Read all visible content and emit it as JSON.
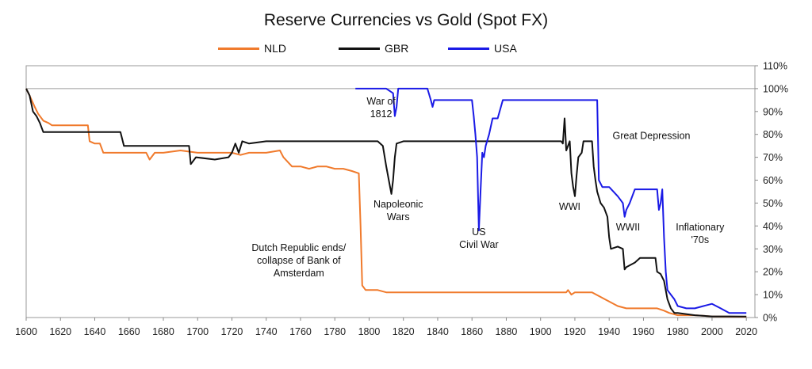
{
  "chart_data": {
    "type": "line",
    "title": "Reserve Currencies vs Gold (Spot FX)",
    "xlabel": "",
    "ylabel": "",
    "xlim": [
      1600,
      2025
    ],
    "ylim": [
      0,
      1.1
    ],
    "x_ticks": [
      1600,
      1620,
      1640,
      1660,
      1680,
      1700,
      1720,
      1740,
      1760,
      1780,
      1800,
      1820,
      1840,
      1860,
      1880,
      1900,
      1920,
      1940,
      1960,
      1980,
      2000,
      2020
    ],
    "y_ticks": [
      0,
      0.1,
      0.2,
      0.3,
      0.4,
      0.5,
      0.6,
      0.7,
      0.8,
      0.9,
      1.0,
      1.1
    ],
    "y_tick_labels": [
      "0%",
      "10%",
      "20%",
      "30%",
      "40%",
      "50%",
      "60%",
      "70%",
      "80%",
      "90%",
      "100%",
      "110%"
    ],
    "y_axis_side": "right",
    "legend_position": "top",
    "series": [
      {
        "name": "NLD",
        "color": "#f07a2c",
        "points": [
          [
            1600,
            1.0
          ],
          [
            1602,
            0.97
          ],
          [
            1605,
            0.92
          ],
          [
            1607,
            0.89
          ],
          [
            1610,
            0.86
          ],
          [
            1613,
            0.85
          ],
          [
            1615,
            0.84
          ],
          [
            1620,
            0.84
          ],
          [
            1625,
            0.84
          ],
          [
            1636,
            0.84
          ],
          [
            1637,
            0.77
          ],
          [
            1640,
            0.76
          ],
          [
            1643,
            0.76
          ],
          [
            1645,
            0.72
          ],
          [
            1650,
            0.72
          ],
          [
            1660,
            0.72
          ],
          [
            1670,
            0.72
          ],
          [
            1672,
            0.69
          ],
          [
            1675,
            0.72
          ],
          [
            1680,
            0.72
          ],
          [
            1690,
            0.73
          ],
          [
            1700,
            0.72
          ],
          [
            1710,
            0.72
          ],
          [
            1720,
            0.72
          ],
          [
            1725,
            0.71
          ],
          [
            1730,
            0.72
          ],
          [
            1740,
            0.72
          ],
          [
            1748,
            0.73
          ],
          [
            1750,
            0.7
          ],
          [
            1755,
            0.66
          ],
          [
            1760,
            0.66
          ],
          [
            1765,
            0.65
          ],
          [
            1770,
            0.66
          ],
          [
            1775,
            0.66
          ],
          [
            1780,
            0.65
          ],
          [
            1785,
            0.65
          ],
          [
            1790,
            0.64
          ],
          [
            1794,
            0.63
          ],
          [
            1795,
            0.4
          ],
          [
            1796,
            0.14
          ],
          [
            1798,
            0.12
          ],
          [
            1805,
            0.12
          ],
          [
            1810,
            0.11
          ],
          [
            1820,
            0.11
          ],
          [
            1840,
            0.11
          ],
          [
            1860,
            0.11
          ],
          [
            1880,
            0.11
          ],
          [
            1900,
            0.11
          ],
          [
            1915,
            0.11
          ],
          [
            1916,
            0.12
          ],
          [
            1918,
            0.1
          ],
          [
            1920,
            0.11
          ],
          [
            1930,
            0.11
          ],
          [
            1935,
            0.09
          ],
          [
            1940,
            0.07
          ],
          [
            1945,
            0.05
          ],
          [
            1950,
            0.04
          ],
          [
            1960,
            0.04
          ],
          [
            1968,
            0.04
          ],
          [
            1972,
            0.03
          ],
          [
            1975,
            0.02
          ],
          [
            1980,
            0.01
          ],
          [
            1990,
            0.01
          ],
          [
            2000,
            0.005
          ],
          [
            2020,
            0.003
          ]
        ]
      },
      {
        "name": "GBR",
        "color": "#111111",
        "points": [
          [
            1600,
            1.0
          ],
          [
            1602,
            0.97
          ],
          [
            1604,
            0.9
          ],
          [
            1606,
            0.88
          ],
          [
            1608,
            0.85
          ],
          [
            1610,
            0.81
          ],
          [
            1620,
            0.81
          ],
          [
            1640,
            0.81
          ],
          [
            1655,
            0.81
          ],
          [
            1657,
            0.75
          ],
          [
            1670,
            0.75
          ],
          [
            1690,
            0.75
          ],
          [
            1695,
            0.75
          ],
          [
            1696,
            0.67
          ],
          [
            1699,
            0.7
          ],
          [
            1710,
            0.69
          ],
          [
            1718,
            0.7
          ],
          [
            1720,
            0.72
          ],
          [
            1722,
            0.76
          ],
          [
            1724,
            0.72
          ],
          [
            1726,
            0.77
          ],
          [
            1730,
            0.76
          ],
          [
            1740,
            0.77
          ],
          [
            1750,
            0.77
          ],
          [
            1760,
            0.77
          ],
          [
            1770,
            0.77
          ],
          [
            1780,
            0.77
          ],
          [
            1790,
            0.77
          ],
          [
            1797,
            0.77
          ],
          [
            1800,
            0.77
          ],
          [
            1805,
            0.77
          ],
          [
            1808,
            0.75
          ],
          [
            1810,
            0.66
          ],
          [
            1812,
            0.58
          ],
          [
            1813,
            0.54
          ],
          [
            1814,
            0.6
          ],
          [
            1815,
            0.7
          ],
          [
            1816,
            0.76
          ],
          [
            1820,
            0.77
          ],
          [
            1840,
            0.77
          ],
          [
            1860,
            0.77
          ],
          [
            1880,
            0.77
          ],
          [
            1900,
            0.77
          ],
          [
            1912,
            0.77
          ],
          [
            1913,
            0.76
          ],
          [
            1914,
            0.87
          ],
          [
            1915,
            0.73
          ],
          [
            1917,
            0.77
          ],
          [
            1918,
            0.63
          ],
          [
            1919,
            0.57
          ],
          [
            1920,
            0.53
          ],
          [
            1921,
            0.62
          ],
          [
            1922,
            0.7
          ],
          [
            1924,
            0.72
          ],
          [
            1925,
            0.77
          ],
          [
            1930,
            0.77
          ],
          [
            1931,
            0.66
          ],
          [
            1932,
            0.6
          ],
          [
            1933,
            0.55
          ],
          [
            1935,
            0.5
          ],
          [
            1937,
            0.48
          ],
          [
            1939,
            0.44
          ],
          [
            1940,
            0.35
          ],
          [
            1941,
            0.3
          ],
          [
            1945,
            0.31
          ],
          [
            1948,
            0.3
          ],
          [
            1949,
            0.21
          ],
          [
            1950,
            0.22
          ],
          [
            1955,
            0.24
          ],
          [
            1958,
            0.26
          ],
          [
            1960,
            0.26
          ],
          [
            1965,
            0.26
          ],
          [
            1967,
            0.26
          ],
          [
            1968,
            0.2
          ],
          [
            1970,
            0.19
          ],
          [
            1972,
            0.16
          ],
          [
            1974,
            0.08
          ],
          [
            1976,
            0.04
          ],
          [
            1978,
            0.02
          ],
          [
            1980,
            0.02
          ],
          [
            1990,
            0.01
          ],
          [
            2000,
            0.005
          ],
          [
            2010,
            0.005
          ],
          [
            2020,
            0.004
          ]
        ]
      },
      {
        "name": "USA",
        "color": "#1a1ae6",
        "points": [
          [
            1792,
            1.0
          ],
          [
            1810,
            1.0
          ],
          [
            1814,
            0.98
          ],
          [
            1815,
            0.88
          ],
          [
            1816,
            0.92
          ],
          [
            1817,
            1.0
          ],
          [
            1820,
            1.0
          ],
          [
            1834,
            1.0
          ],
          [
            1836,
            0.95
          ],
          [
            1837,
            0.92
          ],
          [
            1838,
            0.95
          ],
          [
            1840,
            0.95
          ],
          [
            1850,
            0.95
          ],
          [
            1860,
            0.95
          ],
          [
            1861,
            0.88
          ],
          [
            1862,
            0.8
          ],
          [
            1863,
            0.7
          ],
          [
            1864,
            0.38
          ],
          [
            1865,
            0.55
          ],
          [
            1866,
            0.72
          ],
          [
            1867,
            0.7
          ],
          [
            1868,
            0.75
          ],
          [
            1870,
            0.8
          ],
          [
            1872,
            0.87
          ],
          [
            1875,
            0.87
          ],
          [
            1878,
            0.95
          ],
          [
            1880,
            0.95
          ],
          [
            1900,
            0.95
          ],
          [
            1920,
            0.95
          ],
          [
            1933,
            0.95
          ],
          [
            1934,
            0.6
          ],
          [
            1936,
            0.57
          ],
          [
            1940,
            0.57
          ],
          [
            1945,
            0.53
          ],
          [
            1946,
            0.52
          ],
          [
            1948,
            0.5
          ],
          [
            1949,
            0.44
          ],
          [
            1950,
            0.47
          ],
          [
            1952,
            0.5
          ],
          [
            1955,
            0.56
          ],
          [
            1960,
            0.56
          ],
          [
            1965,
            0.56
          ],
          [
            1968,
            0.56
          ],
          [
            1969,
            0.47
          ],
          [
            1970,
            0.5
          ],
          [
            1971,
            0.56
          ],
          [
            1972,
            0.35
          ],
          [
            1973,
            0.2
          ],
          [
            1974,
            0.12
          ],
          [
            1976,
            0.1
          ],
          [
            1978,
            0.08
          ],
          [
            1980,
            0.05
          ],
          [
            1985,
            0.04
          ],
          [
            1990,
            0.04
          ],
          [
            1995,
            0.05
          ],
          [
            2000,
            0.06
          ],
          [
            2005,
            0.04
          ],
          [
            2010,
            0.02
          ],
          [
            2012,
            0.02
          ],
          [
            2015,
            0.02
          ],
          [
            2020,
            0.02
          ]
        ]
      }
    ],
    "annotations": [
      {
        "lines": [
          "War of",
          "1812"
        ],
        "x": 1807,
        "y": 0.93,
        "anchor": "middle"
      },
      {
        "lines": [
          "Napoleonic",
          "Wars"
        ],
        "x": 1817,
        "y": 0.48,
        "anchor": "middle"
      },
      {
        "lines": [
          "US",
          "Civil War"
        ],
        "x": 1864,
        "y": 0.36,
        "anchor": "middle"
      },
      {
        "lines": [
          "WWI"
        ],
        "x": 1917,
        "y": 0.47,
        "anchor": "middle"
      },
      {
        "lines": [
          "WWII"
        ],
        "x": 1951,
        "y": 0.38,
        "anchor": "middle"
      },
      {
        "lines": [
          "Great Depression"
        ],
        "x": 1942,
        "y": 0.78,
        "anchor": "start"
      },
      {
        "lines": [
          "Inflationary",
          "'70s"
        ],
        "x": 1993,
        "y": 0.38,
        "anchor": "middle"
      },
      {
        "lines": [
          "Dutch Republic ends/",
          "collapse of Bank of",
          "Amsterdam"
        ],
        "x": 1759,
        "y": 0.29,
        "anchor": "middle"
      }
    ]
  }
}
